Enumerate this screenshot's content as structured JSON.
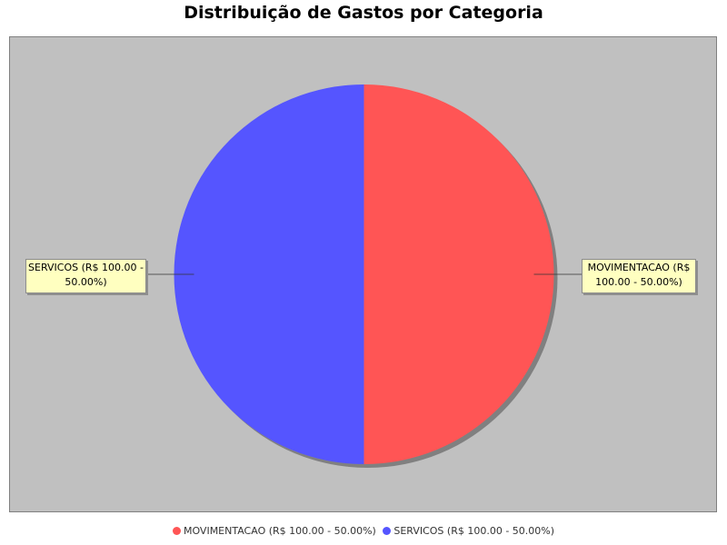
{
  "chart_data": {
    "type": "pie",
    "title": "Distribuição de Gastos por Categoria",
    "slices": [
      {
        "name": "MOVIMENTACAO",
        "value": 100.0,
        "percent": 50.0,
        "color": "#ff5555",
        "label": "MOVIMENTACAO (R$ 100.00 - 50.00%)",
        "label_line1": "MOVIMENTACAO (R$",
        "label_line2": "100.00 - 50.00%)"
      },
      {
        "name": "SERVICOS",
        "value": 100.0,
        "percent": 50.0,
        "color": "#5555ff",
        "label": "SERVICOS (R$ 100.00 - 50.00%)",
        "label_line1": "SERVICOS (R$ 100.00 -",
        "label_line2": "50.00%)"
      }
    ],
    "legend_position": "bottom",
    "background_color": "#c0c0c0"
  }
}
